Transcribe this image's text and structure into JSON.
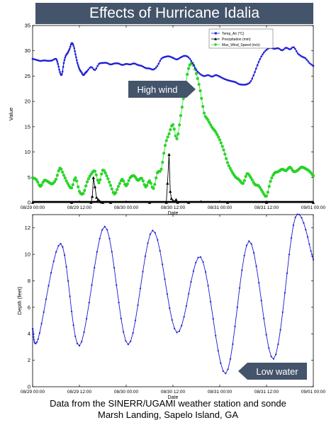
{
  "header": {
    "title": "Effects of Hurricane Idalia"
  },
  "footer": {
    "line1": "Data from the SINERR/UGAMI weather station and sonde",
    "line2": "Marsh Landing, Sapelo Island, GA"
  },
  "colors": {
    "title_bg": "#44546a",
    "callout_bg": "#44546a",
    "temp": "#1f1fd6",
    "precip": "#000000",
    "wind": "#22e322",
    "wind_edge": "#119911",
    "depth": "#1a1ad0"
  },
  "chart_data": [
    {
      "type": "line",
      "title": "Effects of Hurricane Idalia",
      "xlabel": "Date",
      "ylabel": "Value",
      "ylim": [
        0,
        35
      ],
      "yticks": [
        0,
        5,
        10,
        15,
        20,
        25,
        30,
        35
      ],
      "x_tick_labels": [
        "08/29 00:00",
        "08/29 12:00",
        "08/30 00:00",
        "08/30 12:00",
        "08/31 00:00",
        "08/31 12:00",
        "09/01 00:00"
      ],
      "x_unit": "hours since 08/29 00:00",
      "xlim": [
        0,
        72
      ],
      "legend_position": "top-right",
      "grid": false,
      "annotation": "High wind",
      "series": [
        {
          "name": "Temp_Air (°C)",
          "marker": "square",
          "x": [
            0,
            1,
            2,
            3,
            4,
            5,
            6,
            6.5,
            7,
            7.5,
            8,
            8.5,
            9,
            9.5,
            10,
            10.5,
            11,
            11.5,
            12,
            12.5,
            13,
            13.5,
            14,
            15,
            16,
            17,
            18,
            19,
            20,
            21,
            22,
            23,
            24,
            25,
            26,
            27,
            28,
            29,
            30,
            31,
            32,
            33,
            34,
            35,
            36,
            37,
            38,
            39,
            40,
            41,
            42,
            43,
            44,
            45,
            46,
            47,
            48,
            49,
            50,
            51,
            52,
            53,
            54,
            55,
            56,
            57,
            58,
            59,
            60,
            61,
            62,
            63,
            64,
            65,
            66,
            67,
            68,
            69,
            70,
            71,
            72
          ],
          "y": [
            28.4,
            28.2,
            28.0,
            28.1,
            28.0,
            28.1,
            28.4,
            27.4,
            25.8,
            25.3,
            27.6,
            29.0,
            29.6,
            30.4,
            31.5,
            31.0,
            29.3,
            27.6,
            26.4,
            25.8,
            25.2,
            25.6,
            26.0,
            26.8,
            26.2,
            27.4,
            27.6,
            27.6,
            27.3,
            27.5,
            27.5,
            27.2,
            27.4,
            27.3,
            27.5,
            27.2,
            27.0,
            26.6,
            26.5,
            26.3,
            27.0,
            28.4,
            28.8,
            28.9,
            28.6,
            28.3,
            28.7,
            29.0,
            28.7,
            27.6,
            26.2,
            25.4,
            25.0,
            25.2,
            24.9,
            25.2,
            24.9,
            24.5,
            24.2,
            24.0,
            23.8,
            23.4,
            23.3,
            23.4,
            24.0,
            25.8,
            27.8,
            29.3,
            30.2,
            30.6,
            30.4,
            30.5,
            30.1,
            30.6,
            30.3,
            30.7,
            29.5,
            28.9,
            28.5,
            27.6,
            27.0
          ]
        },
        {
          "name": "Precipitation (mm)",
          "marker": "triangle",
          "x": [
            0,
            10,
            15,
            15.3,
            15.6,
            16.0,
            16.4,
            16.8,
            17.2,
            17.6,
            18.0,
            20,
            30,
            34.3,
            34.6,
            35.0,
            35.3,
            35.6,
            36.0,
            36.4,
            36.8,
            37.2,
            40,
            43.2,
            50,
            60,
            72
          ],
          "y": [
            0,
            0,
            0,
            1.2,
            4.9,
            3.1,
            1.0,
            0.6,
            0.3,
            0.1,
            0,
            0,
            0,
            0,
            3.8,
            9.5,
            2.2,
            0.8,
            0.4,
            0.2,
            0.6,
            0,
            0,
            0.2,
            0,
            0,
            0
          ]
        },
        {
          "name": "Max_Wind_Speed (m/s)",
          "marker": "circle",
          "x": [
            0,
            1,
            2,
            3,
            4,
            5,
            6,
            7,
            8,
            9,
            10,
            11,
            12,
            13,
            14,
            15,
            16,
            17,
            18,
            19,
            20,
            21,
            22,
            23,
            24,
            25,
            26,
            27,
            28,
            29,
            30,
            31,
            32,
            33,
            34,
            35,
            36,
            37,
            38,
            39,
            40,
            41,
            42,
            43,
            44,
            45,
            46,
            47,
            48,
            49,
            50,
            51,
            52,
            53,
            54,
            55,
            56,
            57,
            58,
            59,
            60,
            61,
            62,
            63,
            64,
            65,
            66,
            67,
            68,
            69,
            70,
            71,
            72
          ],
          "y": [
            4.9,
            4.5,
            3.2,
            4.4,
            4.1,
            3.7,
            4.6,
            6.8,
            5.4,
            3.8,
            2.9,
            4.9,
            2.2,
            1.8,
            4.1,
            5.6,
            6.2,
            3.9,
            6.4,
            5.3,
            3.4,
            1.7,
            3.2,
            4.6,
            3.3,
            4.9,
            5.3,
            4.4,
            4.8,
            3.1,
            4.3,
            2.8,
            5.9,
            6.6,
            11.3,
            13.6,
            15.4,
            12.6,
            17.2,
            22.2,
            26.5,
            27.5,
            25.5,
            22.1,
            17.7,
            16.3,
            14.9,
            13.9,
            12.4,
            10.4,
            7.9,
            6.3,
            5.1,
            4.5,
            3.8,
            5.7,
            4.9,
            3.6,
            3.3,
            2.1,
            1.3,
            4.2,
            5.8,
            6.1,
            6.6,
            6.3,
            7.0,
            6.1,
            6.4,
            7.0,
            6.7,
            6.2,
            5.3
          ]
        }
      ]
    },
    {
      "type": "line",
      "xlabel": "Date",
      "ylabel": "Depth (feet)",
      "ylim": [
        0,
        13
      ],
      "yticks": [
        0,
        2,
        4,
        6,
        8,
        10,
        12
      ],
      "x_tick_labels": [
        "08/29 00:00",
        "08/29 12:00",
        "08/30 00:00",
        "08/30 12:00",
        "08/31 00:00",
        "08/31 12:00",
        "09/01 00:00"
      ],
      "x_unit": "hours since 08/29 00:00",
      "xlim": [
        0,
        72
      ],
      "grid": false,
      "annotation": "Low water",
      "series": [
        {
          "marker": "dot",
          "x": [
            0,
            1.4,
            7.2,
            12.0,
            18.5,
            24.5,
            30.8,
            37.0,
            43.1,
            49.5,
            55.5,
            61.8,
            67.4,
            72
          ],
          "y": [
            4.4,
            3.6,
            10.8,
            3.1,
            12.1,
            3.2,
            11.8,
            4.1,
            9.8,
            1.0,
            11.0,
            2.1,
            12.8,
            9.6
          ]
        }
      ]
    }
  ]
}
